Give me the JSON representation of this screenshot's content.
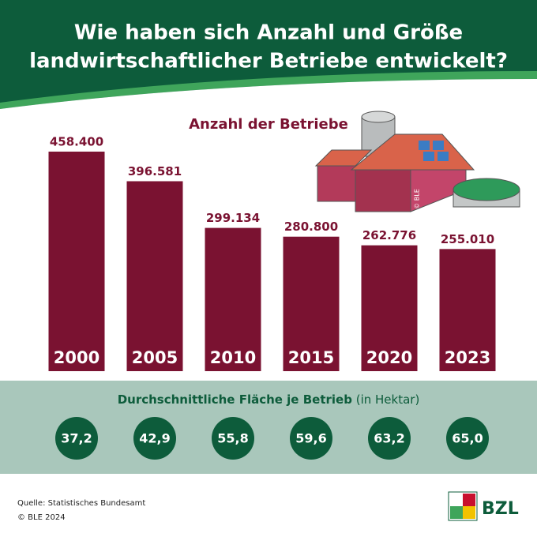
{
  "header": {
    "title_lines": [
      "Wie haben sich Anzahl und Größe",
      "landwirtschaftlicher Betriebe entwickelt?"
    ]
  },
  "chart_data": {
    "type": "bar",
    "title": "Anzahl der Betriebe",
    "categories": [
      "2000",
      "2005",
      "2010",
      "2015",
      "2020",
      "2023"
    ],
    "values": [
      458400,
      396581,
      299134,
      280800,
      262776,
      255010
    ],
    "value_labels": [
      "458.400",
      "396.581",
      "299.134",
      "280.800",
      "262.776",
      "255.010"
    ],
    "color": "#7a1231"
  },
  "area_row": {
    "title": "Durchschnittliche Fläche je Betrieb",
    "unit": "(in Hektar)",
    "values": [
      37.2,
      42.9,
      55.8,
      59.6,
      63.2,
      65.0
    ],
    "value_labels": [
      "37,2",
      "42,9",
      "55,8",
      "59,6",
      "63,2",
      "65,0"
    ],
    "color": "#0d5c3b"
  },
  "illustration_credit": "© BLE",
  "footer": {
    "source": "Quelle: Statistisches Bundesamt",
    "copyright": "© BLE 2024",
    "logo": "BZL"
  }
}
